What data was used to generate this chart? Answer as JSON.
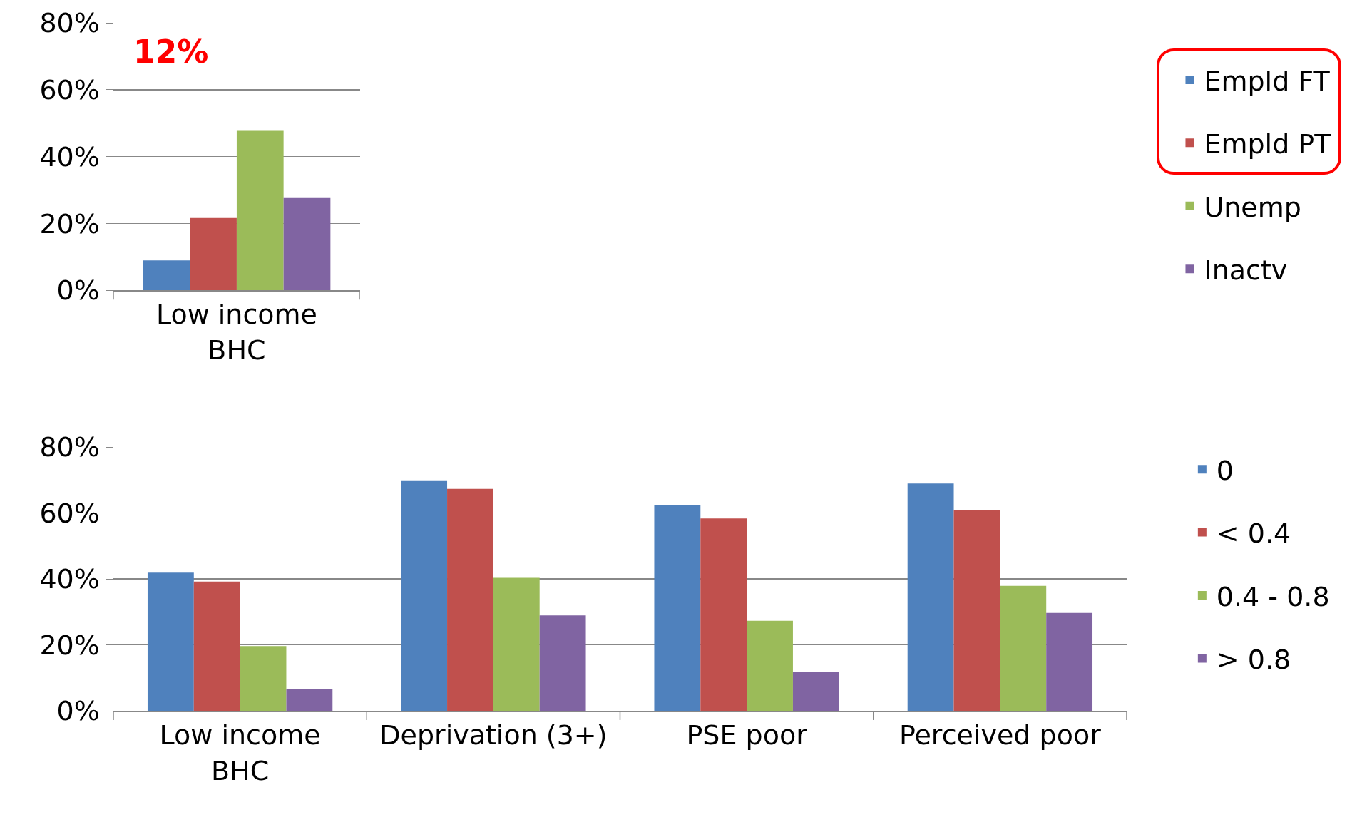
{
  "chart_data": [
    {
      "type": "bar",
      "categories": [
        "Low income BHC"
      ],
      "series": [
        {
          "name": "Empld FT",
          "color": "#4f81bd",
          "values": [
            8.9
          ]
        },
        {
          "name": "Empld PT",
          "color": "#c0504d",
          "values": [
            21.6
          ]
        },
        {
          "name": "Unemp",
          "color": "#9bbb59",
          "values": [
            47.7
          ]
        },
        {
          "name": "Inactv",
          "color": "#8064a2",
          "values": [
            27.6
          ]
        }
      ],
      "ylim": [
        0,
        80
      ],
      "yticks": [
        {
          "value": 0,
          "label": "0%"
        },
        {
          "value": 20,
          "label": "20%"
        },
        {
          "value": 40,
          "label": "40%"
        },
        {
          "value": 60,
          "label": "60%"
        },
        {
          "value": 80,
          "label": "80%"
        }
      ],
      "grid": "y",
      "legend": "right",
      "annotations": [
        "12%"
      ]
    },
    {
      "type": "bar",
      "categories": [
        "Low income BHC",
        "Deprivation (3+)",
        "PSE poor",
        "Perceived poor"
      ],
      "series": [
        {
          "name": "0",
          "color": "#4f81bd",
          "values": [
            41.9,
            69.9,
            62.5,
            68.9
          ]
        },
        {
          "name": "< 0.4",
          "color": "#c0504d",
          "values": [
            39.2,
            67.3,
            58.3,
            60.9
          ]
        },
        {
          "name": "0.4 - 0.8",
          "color": "#9bbb59",
          "values": [
            19.6,
            40.3,
            27.3,
            37.9
          ]
        },
        {
          "name": "> 0.8",
          "color": "#8064a2",
          "values": [
            6.6,
            28.9,
            11.9,
            29.7
          ]
        }
      ],
      "ylim": [
        0,
        80
      ],
      "yticks": [
        {
          "value": 0,
          "label": "0%"
        },
        {
          "value": 20,
          "label": "20%"
        },
        {
          "value": 40,
          "label": "40%"
        },
        {
          "value": 60,
          "label": "60%"
        },
        {
          "value": 80,
          "label": "80%"
        }
      ],
      "grid": "y",
      "legend": "right"
    }
  ]
}
